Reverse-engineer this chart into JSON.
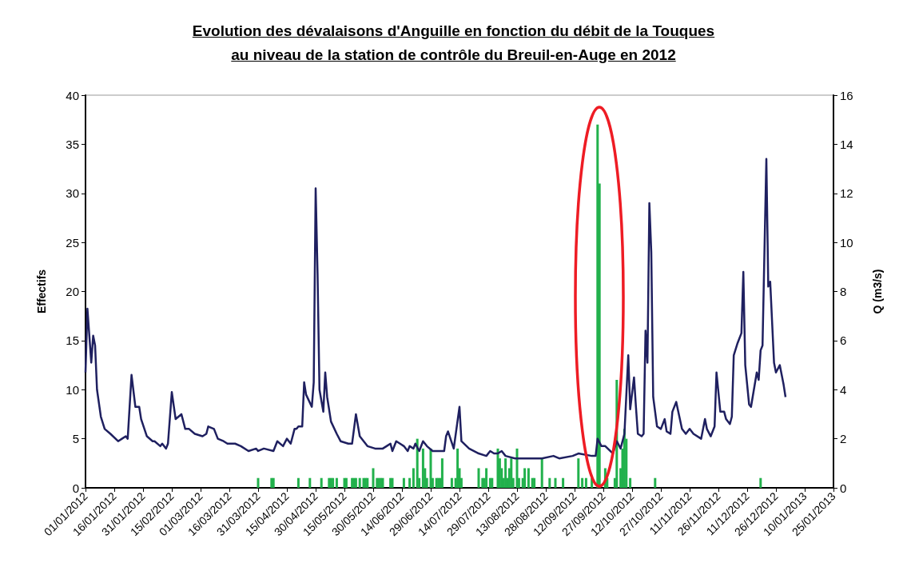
{
  "chart_data": {
    "type": "bar",
    "title": "Evolution des dévalaisons d'Anguille en fonction du débit de la Touques au niveau de la station de contrôle du Breuil-en-Auge en 2012",
    "ylabel": "Effectifs",
    "y2label": "Q (m3/s)",
    "xlim": [
      "2012-01-01",
      "2013-01-25"
    ],
    "xticks": [
      {
        "value": "2012-01-01",
        "label": "01/01/2012"
      },
      {
        "value": "2012-01-16",
        "label": "16/01/2012"
      },
      {
        "value": "2012-01-31",
        "label": "31/01/2012"
      },
      {
        "value": "2012-02-15",
        "label": "15/02/2012"
      },
      {
        "value": "2012-03-01",
        "label": "01/03/2012"
      },
      {
        "value": "2012-03-16",
        "label": "16/03/2012"
      },
      {
        "value": "2012-03-31",
        "label": "31/03/2012"
      },
      {
        "value": "2012-04-15",
        "label": "15/04/2012"
      },
      {
        "value": "2012-04-30",
        "label": "30/04/2012"
      },
      {
        "value": "2012-05-15",
        "label": "15/05/2012"
      },
      {
        "value": "2012-05-30",
        "label": "30/05/2012"
      },
      {
        "value": "2012-06-14",
        "label": "14/06/2012"
      },
      {
        "value": "2012-06-29",
        "label": "29/06/2012"
      },
      {
        "value": "2012-07-14",
        "label": "14/07/2012"
      },
      {
        "value": "2012-07-29",
        "label": "29/07/2012"
      },
      {
        "value": "2012-08-13",
        "label": "13/08/2012"
      },
      {
        "value": "2012-08-28",
        "label": "28/08/2012"
      },
      {
        "value": "2012-09-12",
        "label": "12/09/2012"
      },
      {
        "value": "2012-09-27",
        "label": "27/09/2012"
      },
      {
        "value": "2012-10-12",
        "label": "12/10/2012"
      },
      {
        "value": "2012-10-27",
        "label": "27/10/2012"
      },
      {
        "value": "2012-11-11",
        "label": "11/11/2012"
      },
      {
        "value": "2012-11-26",
        "label": "26/11/2012"
      },
      {
        "value": "2012-12-11",
        "label": "11/12/2012"
      },
      {
        "value": "2012-12-26",
        "label": "26/12/2012"
      },
      {
        "value": "2013-01-10",
        "label": "10/01/2013"
      },
      {
        "value": "2013-01-25",
        "label": "25/01/2013"
      }
    ],
    "ylim": [
      0,
      40
    ],
    "yticks": [
      0,
      5,
      10,
      15,
      20,
      25,
      30,
      35,
      40
    ],
    "y2lim": [
      0,
      16
    ],
    "y2ticks": [
      0,
      2,
      4,
      6,
      8,
      10,
      12,
      14,
      16
    ],
    "grid": false,
    "marker": "none",
    "series": [
      {
        "color": "#22b14c",
        "x": [
          "2012-03-31",
          "2012-04-07",
          "2012-04-08",
          "2012-04-21",
          "2012-04-27",
          "2012-05-03",
          "2012-05-07",
          "2012-05-08",
          "2012-05-09",
          "2012-05-11",
          "2012-05-15",
          "2012-05-16",
          "2012-05-19",
          "2012-05-20",
          "2012-05-21",
          "2012-05-23",
          "2012-05-25",
          "2012-05-26",
          "2012-05-27",
          "2012-05-30",
          "2012-06-01",
          "2012-06-02",
          "2012-06-03",
          "2012-06-04",
          "2012-06-08",
          "2012-06-09",
          "2012-06-15",
          "2012-06-18",
          "2012-06-20",
          "2012-06-22",
          "2012-06-23",
          "2012-06-25",
          "2012-06-26",
          "2012-06-27",
          "2012-06-29",
          "2012-06-30",
          "2012-07-02",
          "2012-07-03",
          "2012-07-04",
          "2012-07-05",
          "2012-07-10",
          "2012-07-12",
          "2012-07-13",
          "2012-07-14",
          "2012-07-15",
          "2012-07-24",
          "2012-07-26",
          "2012-07-27",
          "2012-07-28",
          "2012-07-30",
          "2012-07-31",
          "2012-08-03",
          "2012-08-04",
          "2012-08-05",
          "2012-08-06",
          "2012-08-07",
          "2012-08-08",
          "2012-08-09",
          "2012-08-10",
          "2012-08-11",
          "2012-08-13",
          "2012-08-14",
          "2012-08-16",
          "2012-08-17",
          "2012-08-19",
          "2012-08-21",
          "2012-08-22",
          "2012-08-26",
          "2012-08-30",
          "2012-09-02",
          "2012-09-06",
          "2012-09-14",
          "2012-09-16",
          "2012-09-18",
          "2012-09-21",
          "2012-09-24",
          "2012-09-25",
          "2012-09-28",
          "2012-09-29",
          "2012-10-03",
          "2012-10-04",
          "2012-10-06",
          "2012-10-07",
          "2012-10-08",
          "2012-10-09",
          "2012-10-11",
          "2012-10-24",
          "2012-12-18"
        ],
        "values": [
          1,
          1,
          1,
          1,
          1,
          1,
          1,
          1,
          1,
          1,
          1,
          1,
          1,
          1,
          1,
          1,
          1,
          1,
          1,
          2,
          1,
          1,
          1,
          1,
          1,
          1,
          1,
          1,
          2,
          5,
          1,
          4,
          2,
          1,
          4,
          1,
          1,
          1,
          1,
          3,
          1,
          1,
          4,
          2,
          1,
          2,
          1,
          1,
          2,
          1,
          1,
          4,
          3,
          2,
          1,
          3,
          1,
          2,
          3,
          1,
          4,
          1,
          1,
          2,
          2,
          1,
          1,
          3,
          1,
          1,
          1,
          3,
          1,
          1,
          1,
          37,
          31,
          2,
          1,
          1,
          11,
          2,
          4,
          6,
          5,
          1,
          1,
          1
        ]
      },
      {
        "type": "line",
        "axis": "y2",
        "color": "#1f2060",
        "x": [
          "2012-01-01",
          "2012-01-02",
          "2012-01-04",
          "2012-01-05",
          "2012-01-06",
          "2012-01-07",
          "2012-01-09",
          "2012-01-11",
          "2012-01-14",
          "2012-01-18",
          "2012-01-20",
          "2012-01-22",
          "2012-01-23",
          "2012-01-25",
          "2012-01-27",
          "2012-01-29",
          "2012-01-30",
          "2012-02-02",
          "2012-02-05",
          "2012-02-06",
          "2012-02-09",
          "2012-02-10",
          "2012-02-12",
          "2012-02-13",
          "2012-02-15",
          "2012-02-17",
          "2012-02-20",
          "2012-02-22",
          "2012-02-24",
          "2012-02-27",
          "2012-03-02",
          "2012-03-04",
          "2012-03-05",
          "2012-03-08",
          "2012-03-10",
          "2012-03-13",
          "2012-03-15",
          "2012-03-19",
          "2012-03-22",
          "2012-03-26",
          "2012-03-30",
          "2012-03-31",
          "2012-04-03",
          "2012-04-08",
          "2012-04-10",
          "2012-04-13",
          "2012-04-15",
          "2012-04-17",
          "2012-04-19",
          "2012-04-20",
          "2012-04-21",
          "2012-04-23",
          "2012-04-24",
          "2012-04-25",
          "2012-04-28",
          "2012-04-29",
          "2012-04-30",
          "2012-05-01",
          "2012-05-02",
          "2012-05-04",
          "2012-05-05",
          "2012-05-06",
          "2012-05-08",
          "2012-05-11",
          "2012-05-13",
          "2012-05-17",
          "2012-05-19",
          "2012-05-21",
          "2012-05-23",
          "2012-05-27",
          "2012-05-31",
          "2012-06-04",
          "2012-06-06",
          "2012-06-08",
          "2012-06-09",
          "2012-06-11",
          "2012-06-13",
          "2012-06-15",
          "2012-06-17",
          "2012-06-18",
          "2012-06-20",
          "2012-06-21",
          "2012-06-23",
          "2012-06-25",
          "2012-06-27",
          "2012-06-30",
          "2012-07-02",
          "2012-07-06",
          "2012-07-07",
          "2012-07-08",
          "2012-07-11",
          "2012-07-14",
          "2012-07-15",
          "2012-07-19",
          "2012-07-24",
          "2012-07-28",
          "2012-07-30",
          "2012-08-01",
          "2012-08-03",
          "2012-08-05",
          "2012-08-07",
          "2012-08-12",
          "2012-08-15",
          "2012-08-20",
          "2012-08-26",
          "2012-09-01",
          "2012-09-04",
          "2012-09-11",
          "2012-09-14",
          "2012-09-21",
          "2012-09-23",
          "2012-09-24",
          "2012-09-26",
          "2012-09-28",
          "2012-10-02",
          "2012-10-04",
          "2012-10-06",
          "2012-10-08",
          "2012-10-10",
          "2012-10-11",
          "2012-10-13",
          "2012-10-14",
          "2012-10-15",
          "2012-10-17",
          "2012-10-18",
          "2012-10-19",
          "2012-10-20",
          "2012-10-21",
          "2012-10-22",
          "2012-10-23",
          "2012-10-25",
          "2012-10-27",
          "2012-10-29",
          "2012-10-30",
          "2012-11-01",
          "2012-11-02",
          "2012-11-04",
          "2012-11-07",
          "2012-11-09",
          "2012-11-11",
          "2012-11-13",
          "2012-11-17",
          "2012-11-19",
          "2012-11-20",
          "2012-11-22",
          "2012-11-24",
          "2012-11-25",
          "2012-11-27",
          "2012-11-29",
          "2012-11-30",
          "2012-12-02",
          "2012-12-03",
          "2012-12-04",
          "2012-12-06",
          "2012-12-08",
          "2012-12-09",
          "2012-12-10",
          "2012-12-12",
          "2012-12-13",
          "2012-12-16",
          "2012-12-17",
          "2012-12-18",
          "2012-12-19",
          "2012-12-21",
          "2012-12-22",
          "2012-12-23",
          "2012-12-25",
          "2012-12-26",
          "2012-12-28",
          "2012-12-30",
          "2012-12-31"
        ],
        "values": [
          4.7,
          7.3,
          5.1,
          6.2,
          5.8,
          4.0,
          2.9,
          2.4,
          2.2,
          1.9,
          2.0,
          2.1,
          2.0,
          4.6,
          3.3,
          3.3,
          2.8,
          2.1,
          1.9,
          1.9,
          1.7,
          1.8,
          1.6,
          1.8,
          3.9,
          2.8,
          3.0,
          2.4,
          2.4,
          2.2,
          2.1,
          2.2,
          2.5,
          2.4,
          2.0,
          1.9,
          1.8,
          1.8,
          1.7,
          1.5,
          1.6,
          1.5,
          1.6,
          1.5,
          1.9,
          1.7,
          2.0,
          1.8,
          2.4,
          2.4,
          2.5,
          2.5,
          4.3,
          3.8,
          3.3,
          4.3,
          12.2,
          8.7,
          4.0,
          3.1,
          4.7,
          3.7,
          2.7,
          2.2,
          1.9,
          1.8,
          1.8,
          3.0,
          2.1,
          1.7,
          1.6,
          1.6,
          1.7,
          1.8,
          1.5,
          1.9,
          1.8,
          1.7,
          1.5,
          1.7,
          1.6,
          1.8,
          1.5,
          1.9,
          1.7,
          1.5,
          1.5,
          1.5,
          2.1,
          2.3,
          1.6,
          3.3,
          1.9,
          1.6,
          1.4,
          1.3,
          1.5,
          1.4,
          1.4,
          1.5,
          1.3,
          1.2,
          1.2,
          1.2,
          1.2,
          1.3,
          1.2,
          1.3,
          1.4,
          1.3,
          1.3,
          2.0,
          1.7,
          1.7,
          1.4,
          1.9,
          1.6,
          2.2,
          5.4,
          3.2,
          4.5,
          3.3,
          2.2,
          2.1,
          2.2,
          6.4,
          5.1,
          11.6,
          9.6,
          3.7,
          2.5,
          2.4,
          2.8,
          2.3,
          2.2,
          3.1,
          3.5,
          2.4,
          2.2,
          2.4,
          2.2,
          2.0,
          2.8,
          2.4,
          2.1,
          2.5,
          4.7,
          3.1,
          3.1,
          2.8,
          2.6,
          2.9,
          5.4,
          5.9,
          6.3,
          8.8,
          5.0,
          3.4,
          3.3,
          4.7,
          4.4,
          5.6,
          5.8,
          13.4,
          8.2,
          8.4,
          5.1,
          4.7,
          5.0,
          4.2,
          3.7
        ]
      }
    ]
  }
}
